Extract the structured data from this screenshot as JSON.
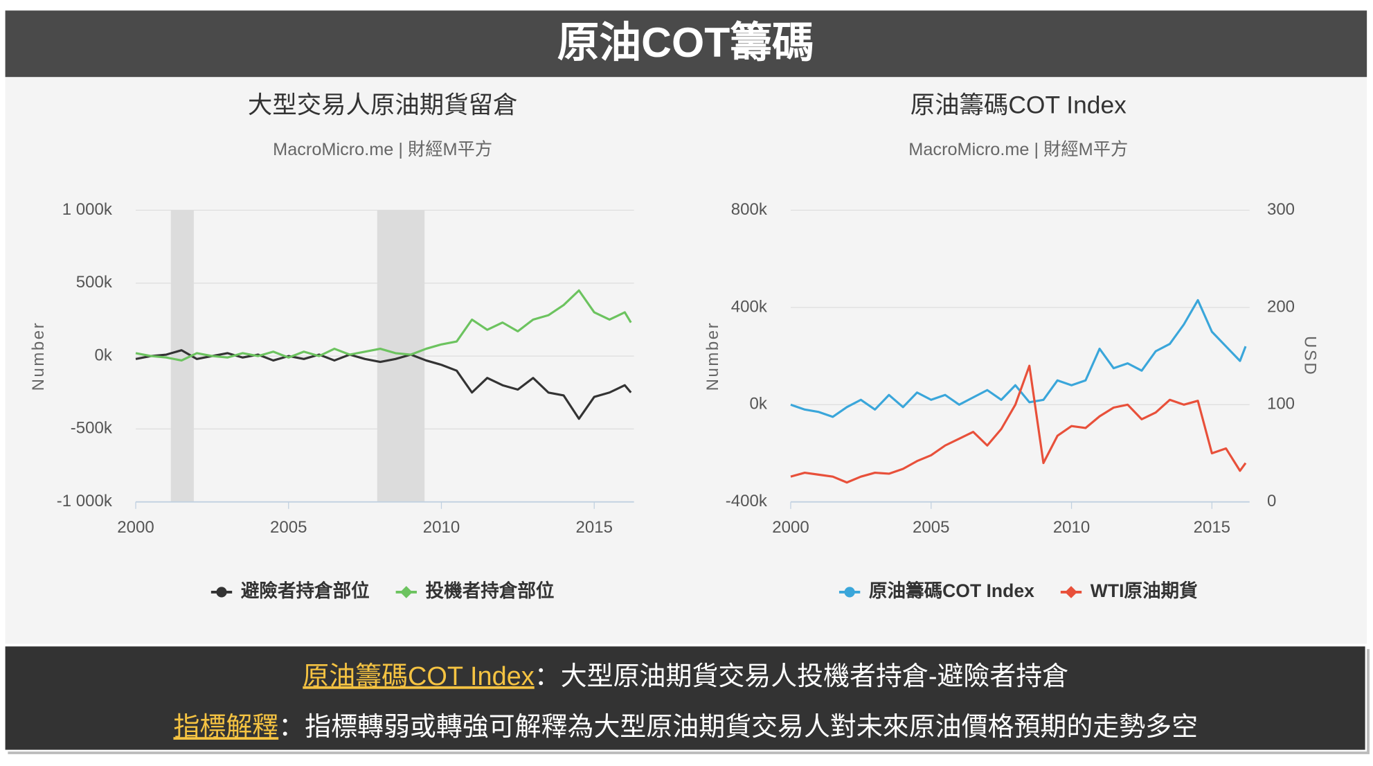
{
  "header": {
    "title": "原油COT籌碼"
  },
  "chart_data": [
    {
      "type": "line",
      "title": "大型交易人原油期貨留倉",
      "subtitle": "MacroMicro.me | 財經M平方",
      "y_label": "Number",
      "x": [
        2000,
        2000.5,
        2001,
        2001.5,
        2002,
        2002.5,
        2003,
        2003.5,
        2004,
        2004.5,
        2005,
        2005.5,
        2006,
        2006.5,
        2007,
        2007.5,
        2008,
        2008.5,
        2009,
        2009.5,
        2010,
        2010.5,
        2011,
        2011.5,
        2012,
        2012.5,
        2013,
        2013.5,
        2014,
        2014.5,
        2015,
        2015.5,
        2016,
        2016.2
      ],
      "xlim": [
        2000,
        2016.3
      ],
      "xticks": [
        2000,
        2005,
        2010,
        2015
      ],
      "ylim": [
        -1000000,
        1000000
      ],
      "yticks": [
        {
          "value": -1000000,
          "label": "-1 000k"
        },
        {
          "value": -500000,
          "label": "-500k"
        },
        {
          "value": 0,
          "label": "0k"
        },
        {
          "value": 500000,
          "label": "500k"
        },
        {
          "value": 1000000,
          "label": "1 000k"
        }
      ],
      "bands": [
        [
          2001.15,
          2001.9
        ],
        [
          2007.9,
          2009.45
        ]
      ],
      "grid": true,
      "series": [
        {
          "name": "避險者持倉部位",
          "color": "#333333",
          "marker": "circle",
          "values": [
            -20000,
            0,
            10000,
            40000,
            -20000,
            0,
            20000,
            -10000,
            10000,
            -30000,
            0,
            -20000,
            10000,
            -30000,
            10000,
            -20000,
            -40000,
            -20000,
            10000,
            -30000,
            -60000,
            -100000,
            -250000,
            -150000,
            -200000,
            -230000,
            -150000,
            -250000,
            -270000,
            -430000,
            -280000,
            -250000,
            -200000,
            -250000
          ]
        },
        {
          "name": "投機者持倉部位",
          "color": "#6cc35f",
          "marker": "diamond",
          "values": [
            20000,
            0,
            -10000,
            -30000,
            20000,
            0,
            -10000,
            20000,
            0,
            30000,
            -10000,
            30000,
            0,
            50000,
            10000,
            30000,
            50000,
            20000,
            10000,
            50000,
            80000,
            100000,
            250000,
            180000,
            230000,
            170000,
            250000,
            280000,
            350000,
            450000,
            300000,
            250000,
            300000,
            230000
          ]
        }
      ]
    },
    {
      "type": "line",
      "title": "原油籌碼COT Index",
      "subtitle": "MacroMicro.me | 財經M平方",
      "y_label": "Number",
      "y2_label": "USD",
      "x": [
        2000,
        2000.5,
        2001,
        2001.5,
        2002,
        2002.5,
        2003,
        2003.5,
        2004,
        2004.5,
        2005,
        2005.5,
        2006,
        2006.5,
        2007,
        2007.5,
        2008,
        2008.5,
        2009,
        2009.5,
        2010,
        2010.5,
        2011,
        2011.5,
        2012,
        2012.5,
        2013,
        2013.5,
        2014,
        2014.5,
        2015,
        2015.5,
        2016,
        2016.2
      ],
      "xlim": [
        2000,
        2016.34
      ],
      "xticks": [
        2000,
        2005,
        2010,
        2015
      ],
      "ylim": [
        -400000,
        800000
      ],
      "yticks": [
        {
          "value": -400000,
          "label": "-400k"
        },
        {
          "value": 0,
          "label": "0k"
        },
        {
          "value": 400000,
          "label": "400k"
        },
        {
          "value": 800000,
          "label": "800k"
        }
      ],
      "y2lim": [
        0,
        300
      ],
      "y2ticks": [
        0,
        100,
        200,
        300
      ],
      "grid": true,
      "series": [
        {
          "name": "原油籌碼COT Index",
          "color": "#3aa6da",
          "marker": "circle",
          "values": [
            0,
            -20000,
            -30000,
            -50000,
            -10000,
            20000,
            -20000,
            40000,
            -10000,
            50000,
            20000,
            40000,
            0,
            30000,
            60000,
            20000,
            80000,
            10000,
            20000,
            100000,
            80000,
            100000,
            230000,
            150000,
            170000,
            140000,
            220000,
            250000,
            330000,
            430000,
            300000,
            240000,
            180000,
            240000
          ]
        },
        {
          "name": "WTI原油期貨",
          "color": "#e8503a",
          "marker": "diamond",
          "axis": "y2",
          "values": [
            26,
            30,
            28,
            26,
            20,
            26,
            30,
            29,
            34,
            42,
            48,
            58,
            65,
            72,
            58,
            75,
            100,
            140,
            40,
            68,
            78,
            76,
            88,
            97,
            100,
            85,
            92,
            105,
            100,
            104,
            50,
            55,
            32,
            40
          ]
        }
      ]
    }
  ],
  "footer": {
    "lines": [
      {
        "term": "原油籌碼COT Index",
        "text": "：大型原油期貨交易人投機者持倉-避險者持倉"
      },
      {
        "term": "指標解釋",
        "text": "：指標轉弱或轉強可解釋為大型原油期貨交易人對未來原油價格預期的走勢多空"
      }
    ]
  }
}
